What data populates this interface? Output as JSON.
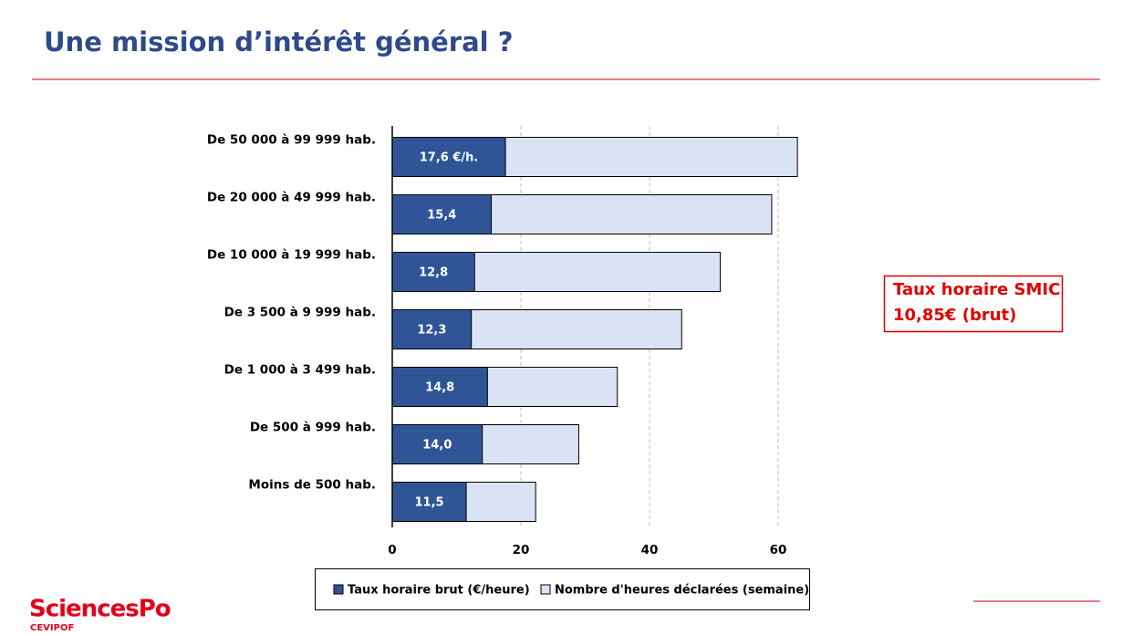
{
  "header": {
    "title": "Une mission d’intérêt général ?"
  },
  "chart_data": {
    "type": "bar",
    "orientation": "horizontal",
    "overlap": true,
    "categories": [
      "De 50 000 à 99 999 hab.",
      "De 20 000 à 49 999 hab.",
      "De 10 000 à 19 999 hab.",
      "De 3 500 à 9 999 hab.",
      "De 1 000 à 3 499 hab.",
      "De 500 à 999 hab.",
      "Moins de 500 hab."
    ],
    "series": [
      {
        "name": "Taux horaire brut (€/heure)",
        "color": "#2f5597",
        "values": [
          17.6,
          15.4,
          12.8,
          12.3,
          14.8,
          14.0,
          11.5
        ],
        "value_labels": [
          "17,6 €/h.",
          "15,4",
          "12,8",
          "12,3",
          "14,8",
          "14,0",
          "11,5"
        ]
      },
      {
        "name": "Nombre d'heures déclarées (semaine)",
        "color": "#dae3f3",
        "values": [
          63,
          59,
          51,
          45,
          35,
          29,
          22.3
        ]
      }
    ],
    "xlim": [
      0,
      64
    ],
    "xticks": [
      0,
      20,
      40,
      60
    ],
    "grid": true,
    "annotation": [
      "Taux horaire SMIC",
      "10,85€ (brut)"
    ]
  },
  "footer": {
    "logo": "SciencesPo",
    "sublogo": "CEVIPOF"
  }
}
